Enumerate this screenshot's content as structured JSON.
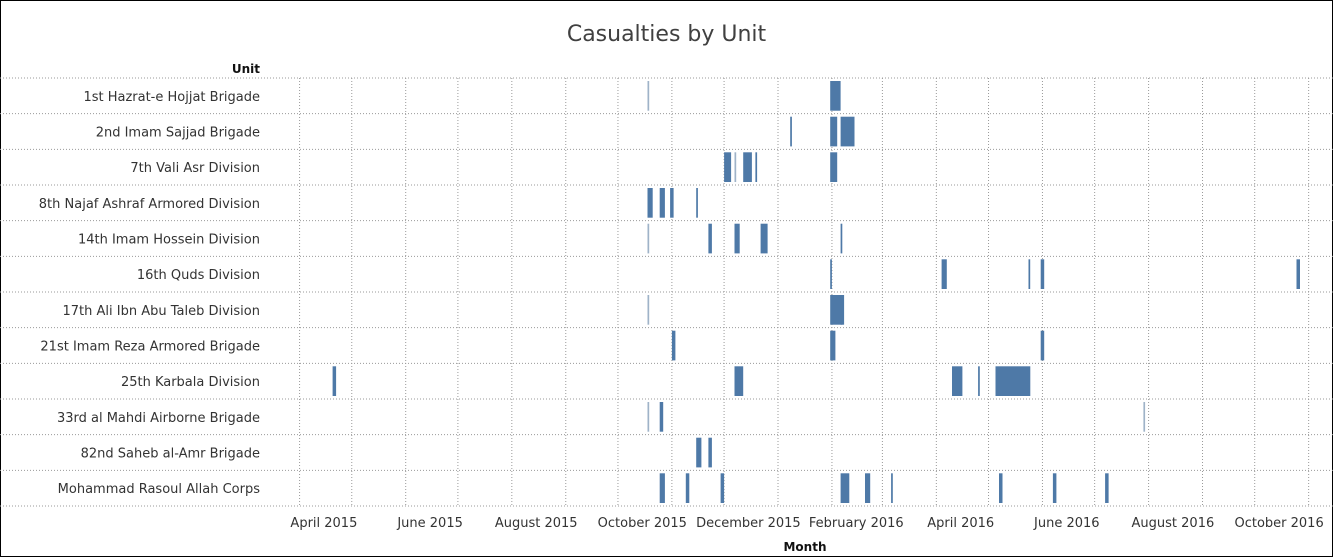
{
  "chart_data": {
    "type": "bar",
    "title": "Casualties by Unit",
    "row_header": "Unit",
    "xlabel": "Month",
    "x_ticks": [
      "April 2015",
      "June 2015",
      "August 2015",
      "October 2015",
      "December 2015",
      "February 2016",
      "April 2016",
      "June 2016",
      "August 2016",
      "October 2016"
    ],
    "x_range": [
      "2015-03-15",
      "2016-11-15"
    ],
    "categories": [
      "1st Hazrat-e Hojjat Brigade",
      "2nd Imam Sajjad Brigade",
      "7th Vali Asr Division",
      "8th Najaf Ashraf Armored Division",
      "14th Imam Hossein Division",
      "16th Quds Division",
      "17th Ali Ibn Abu Taleb Division",
      "21st Imam Reza Armored Brigade",
      "25th Karbala Division",
      "33rd al Mahdi Airborne Brigade",
      "82nd Saheb al-Amr Brigade",
      "Mohammad Rasoul Allah Corps"
    ],
    "events": [
      [
        [
          "2015-10-18",
          1,
          "light"
        ],
        [
          "2016-01-31",
          6
        ]
      ],
      [
        [
          "2016-01-08",
          1
        ],
        [
          "2016-01-31",
          4
        ],
        [
          "2016-02-06",
          8
        ]
      ],
      [
        [
          "2015-12-01",
          4
        ],
        [
          "2015-12-07",
          1,
          "light"
        ],
        [
          "2015-12-12",
          5
        ],
        [
          "2015-12-19",
          1
        ],
        [
          "2016-01-31",
          4
        ]
      ],
      [
        [
          "2015-10-18",
          3
        ],
        [
          "2015-10-25",
          3
        ],
        [
          "2015-10-31",
          2
        ],
        [
          "2015-11-15",
          1
        ]
      ],
      [
        [
          "2015-10-18",
          1,
          "light"
        ],
        [
          "2015-11-22",
          2
        ],
        [
          "2015-12-07",
          3
        ],
        [
          "2015-12-22",
          4
        ],
        [
          "2016-02-06",
          1
        ]
      ],
      [
        [
          "2016-01-31",
          1
        ],
        [
          "2016-04-04",
          3
        ],
        [
          "2016-05-24",
          1
        ],
        [
          "2016-05-31",
          2
        ],
        [
          "2016-10-25",
          2
        ]
      ],
      [
        [
          "2015-10-18",
          1,
          "light"
        ],
        [
          "2016-01-31",
          8
        ],
        [
          "2016-02-06",
          1
        ]
      ],
      [
        [
          "2015-11-01",
          2
        ],
        [
          "2016-01-31",
          3
        ],
        [
          "2016-05-31",
          2
        ]
      ],
      [
        [
          "2015-04-20",
          2
        ],
        [
          "2015-12-07",
          5
        ],
        [
          "2016-04-10",
          6
        ],
        [
          "2016-04-25",
          1
        ],
        [
          "2016-05-05",
          20
        ]
      ],
      [
        [
          "2015-10-18",
          1,
          "light"
        ],
        [
          "2015-10-25",
          2
        ],
        [
          "2016-07-29",
          1,
          "light"
        ]
      ],
      [
        [
          "2015-11-15",
          3
        ],
        [
          "2015-11-22",
          2
        ]
      ],
      [
        [
          "2015-10-25",
          3
        ],
        [
          "2015-11-09",
          2
        ],
        [
          "2015-11-29",
          2
        ],
        [
          "2016-02-06",
          5
        ],
        [
          "2016-02-20",
          3
        ],
        [
          "2016-03-06",
          1
        ],
        [
          "2016-05-07",
          2
        ],
        [
          "2016-06-07",
          2
        ],
        [
          "2016-07-07",
          2
        ]
      ]
    ],
    "bar_color": "#4e79a7",
    "bar_color_light": "#9fb3c8",
    "grid": "dotted",
    "legend": "none"
  }
}
